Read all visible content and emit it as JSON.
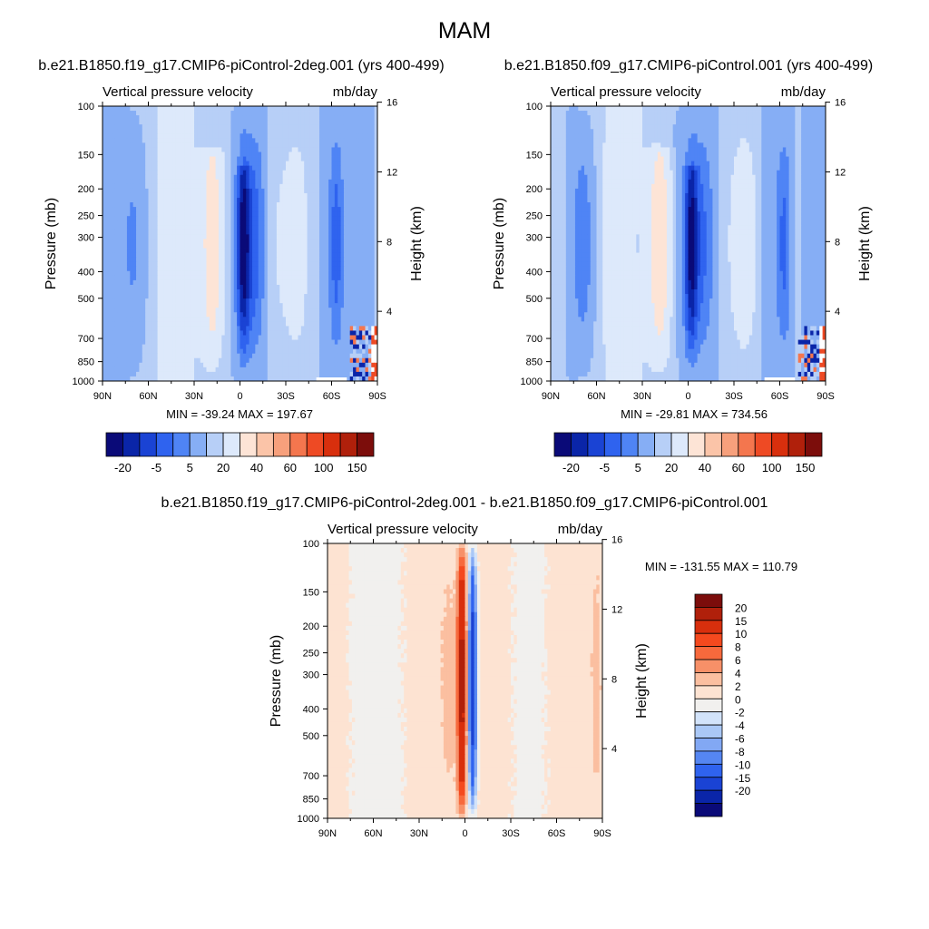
{
  "figure": {
    "title": "MAM"
  },
  "chart_data": [
    {
      "type": "heatmap",
      "panel": "model1",
      "title": "b.e21.B1850.f19_g17.CMIP6-piControl-2deg.001 (yrs 400-499)",
      "variable_label": "Vertical pressure velocity",
      "units_label": "mb/day",
      "ylabel": "Pressure (mb)",
      "y2label": "Height (km)",
      "stats": "MIN = -39.24  MAX = 197.67",
      "x_ticks": [
        "90N",
        "60N",
        "30N",
        "0",
        "30S",
        "60S",
        "90S"
      ],
      "y_ticks": [
        "100",
        "150",
        "200",
        "250",
        "300",
        "400",
        "500",
        "700",
        "850",
        "1000"
      ],
      "y2_ticks": [
        "16",
        "12",
        "8",
        "4"
      ],
      "ylim": [
        1000,
        100
      ],
      "y_scale": "log",
      "colorbar_labels": [
        "-20",
        "-5",
        "5",
        "20",
        "40",
        "60",
        "100",
        "150"
      ],
      "colorbar_orientation": "horizontal"
    },
    {
      "type": "heatmap",
      "panel": "model2",
      "title": "b.e21.B1850.f09_g17.CMIP6-piControl.001 (yrs 400-499)",
      "variable_label": "Vertical pressure velocity",
      "units_label": "mb/day",
      "ylabel": "Pressure (mb)",
      "y2label": "Height (km)",
      "stats": "MIN = -29.81  MAX = 734.56",
      "x_ticks": [
        "90N",
        "60N",
        "30N",
        "0",
        "30S",
        "60S",
        "90S"
      ],
      "y_ticks": [
        "100",
        "150",
        "200",
        "250",
        "300",
        "400",
        "500",
        "700",
        "850",
        "1000"
      ],
      "y2_ticks": [
        "16",
        "12",
        "8",
        "4"
      ],
      "ylim": [
        1000,
        100
      ],
      "y_scale": "log",
      "colorbar_labels": [
        "-20",
        "-5",
        "5",
        "20",
        "40",
        "60",
        "100",
        "150"
      ],
      "colorbar_orientation": "horizontal"
    },
    {
      "type": "heatmap",
      "panel": "difference",
      "title": "b.e21.B1850.f19_g17.CMIP6-piControl-2deg.001 - b.e21.B1850.f09_g17.CMIP6-piControl.001",
      "variable_label": "Vertical pressure velocity",
      "units_label": "mb/day",
      "ylabel": "Pressure (mb)",
      "y2label": "Height (km)",
      "stats": "MIN = -131.55  MAX = 110.79",
      "x_ticks": [
        "90N",
        "60N",
        "30N",
        "0",
        "30S",
        "60S",
        "90S"
      ],
      "y_ticks": [
        "100",
        "150",
        "200",
        "250",
        "300",
        "400",
        "500",
        "700",
        "850",
        "1000"
      ],
      "y2_ticks": [
        "16",
        "12",
        "8",
        "4"
      ],
      "ylim": [
        1000,
        100
      ],
      "y_scale": "log",
      "colorbar_labels": [
        "20",
        "15",
        "10",
        "8",
        "6",
        "4",
        "2",
        "0",
        "-2",
        "-4",
        "-6",
        "-8",
        "-10",
        "-15",
        "-20"
      ],
      "colorbar_orientation": "vertical"
    }
  ],
  "colors": {
    "model_palette": [
      "#0a0a78",
      "#0a25a8",
      "#1a43d4",
      "#2f63ef",
      "#4f84f5",
      "#86aef5",
      "#b7cff7",
      "#dde9fb",
      "#fde4d6",
      "#fbc4a8",
      "#f7a07c",
      "#f4764e",
      "#ee4a24",
      "#d82f0d",
      "#b0200b",
      "#7c0d0b"
    ],
    "diff_palette": [
      "#7c0d0b",
      "#b0200b",
      "#d82f0d",
      "#f4491e",
      "#f7693c",
      "#f79068",
      "#fbbfa0",
      "#fde3d2",
      "#f1f0ee",
      "#d2e3fa",
      "#aac8f6",
      "#82a8f4",
      "#5586f2",
      "#2f63ef",
      "#1a43d4",
      "#0a25a8",
      "#0a0a78"
    ]
  }
}
